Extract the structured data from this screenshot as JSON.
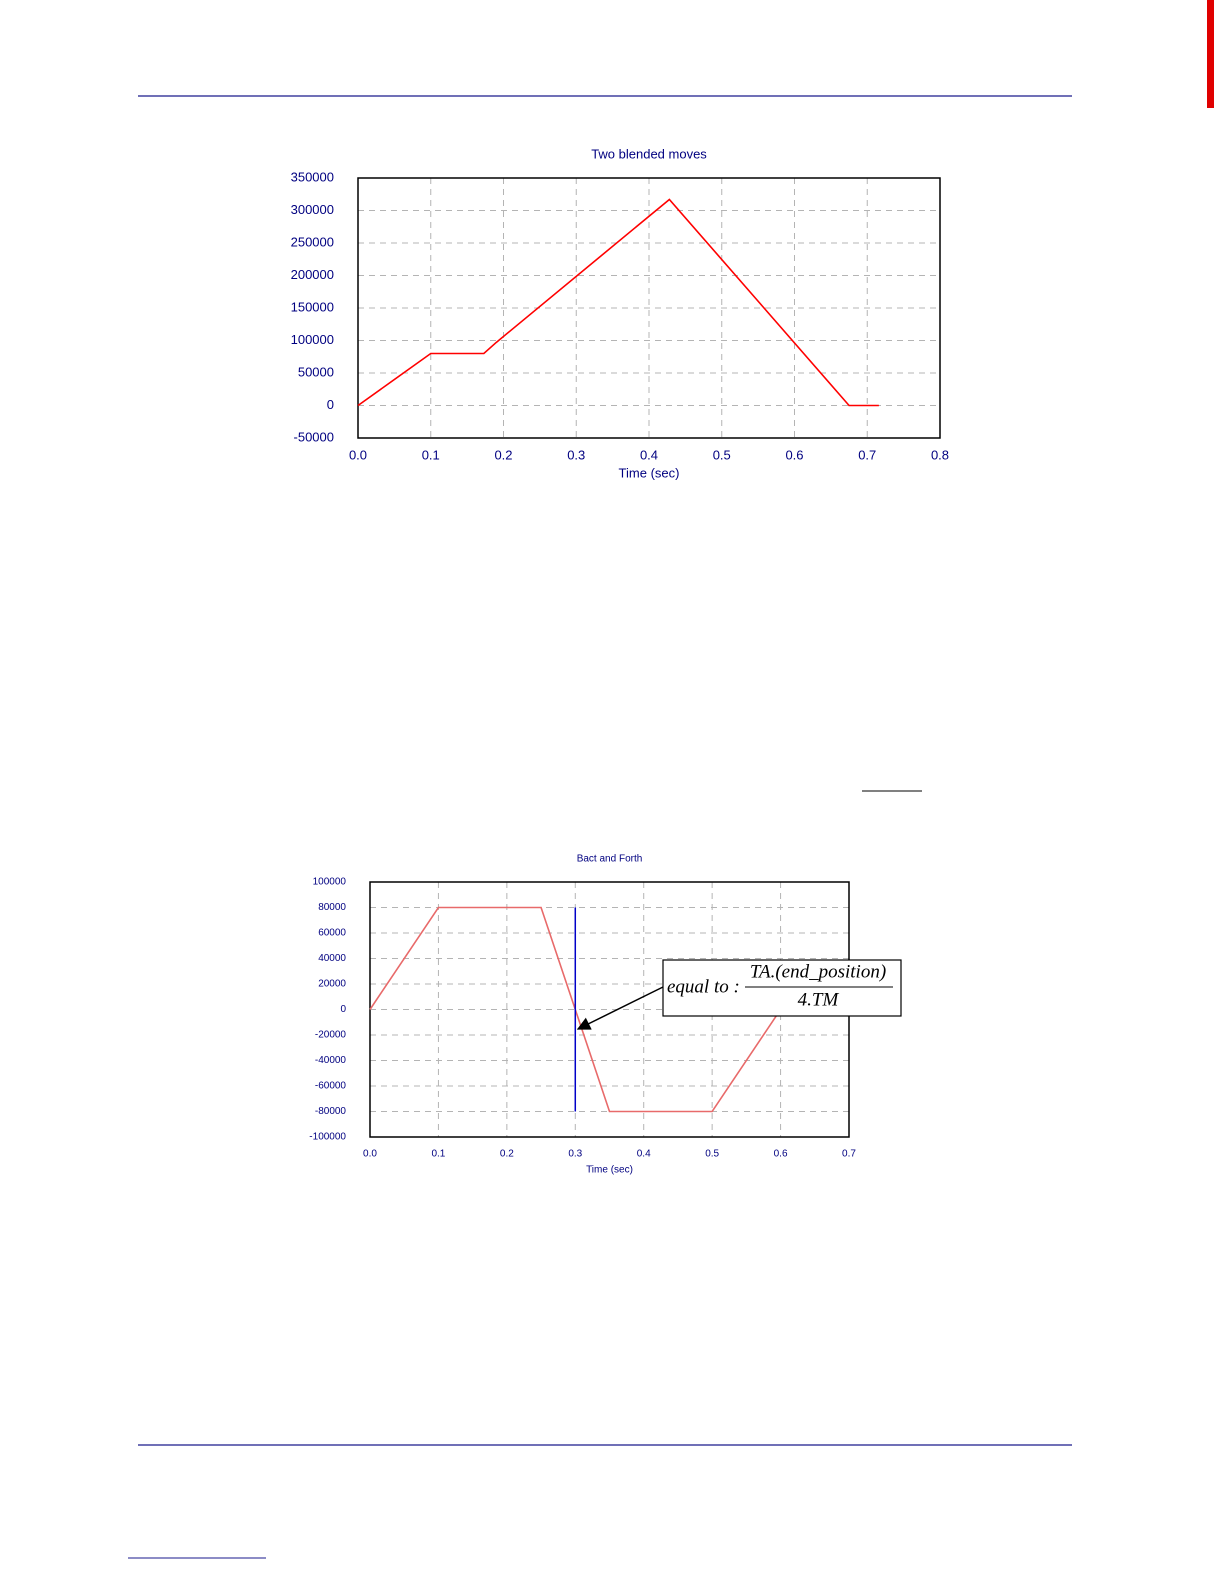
{
  "chart_data": [
    {
      "type": "line",
      "title": "Two blended moves",
      "x_label": "Time (sec)",
      "x": [
        0,
        0.1,
        0.173,
        0.19,
        0.428,
        0.675,
        0.716
      ],
      "values": [
        0,
        80000,
        80000,
        97000,
        317000,
        0,
        0
      ],
      "color": "#ff0000",
      "xlim": [
        0,
        0.8
      ],
      "xticks": [
        {
          "value": 0,
          "label": "0.0"
        },
        0.1,
        0.2,
        0.3,
        0.4,
        0.5,
        0.6,
        0.7,
        0.8
      ],
      "ylim": [
        -50000,
        350000
      ],
      "yticks": [
        -50000,
        0,
        50000,
        100000,
        150000,
        200000,
        250000,
        300000,
        350000
      ],
      "grid": true
    },
    {
      "type": "line",
      "title": "Bact and Forth",
      "x_label": "Time (sec)",
      "x": [
        0,
        0.1,
        0.25,
        0.35,
        0.5,
        0.6
      ],
      "values": [
        0,
        80000,
        80000,
        -80000,
        -80000,
        0
      ],
      "color": "#e86a6a",
      "vline": {
        "x": 0.3,
        "ymin": -80000,
        "ymax": 80000,
        "color": "#0000c8"
      },
      "annotation": {
        "prefix": "equal to :",
        "numerator": "TA.(end_position)",
        "denominator": "4.TM"
      },
      "xlim": [
        0,
        0.7
      ],
      "xticks": [
        {
          "value": 0,
          "label": "0.0"
        },
        0.1,
        0.2,
        0.3,
        0.4,
        0.5,
        0.6,
        0.7
      ],
      "ylim": [
        -100000,
        100000
      ],
      "yticks": [
        -100000,
        -80000,
        -60000,
        -40000,
        -20000,
        0,
        20000,
        40000,
        60000,
        80000,
        100000
      ],
      "grid": true
    }
  ]
}
